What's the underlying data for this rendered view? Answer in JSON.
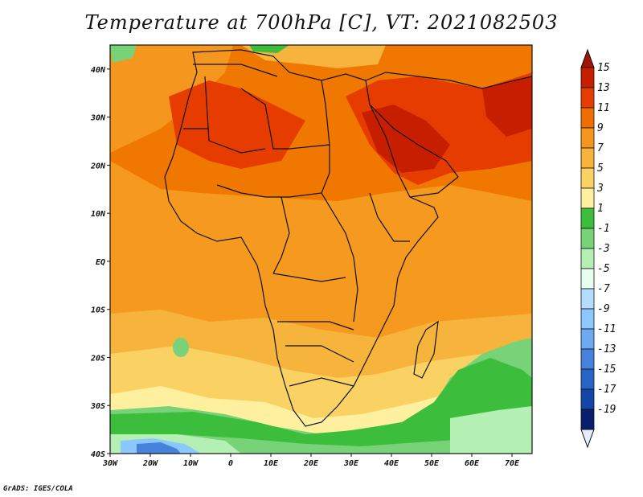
{
  "title": "Temperature at 700hPa [C], VT: 2021082503",
  "credit": "GrADS: IGES/COLA",
  "map": {
    "lon_ticks": [
      "30W",
      "20W",
      "10W",
      "0",
      "10E",
      "20E",
      "30E",
      "40E",
      "50E",
      "60E",
      "70E"
    ],
    "lat_ticks": [
      "40N",
      "30N",
      "20N",
      "10N",
      "EQ",
      "10S",
      "20S",
      "30S",
      "40S"
    ],
    "lon_range": [
      -30,
      75
    ],
    "lat_range": [
      -40,
      45
    ]
  },
  "colorbar": {
    "levels": [
      "15",
      "13",
      "11",
      "9",
      "7",
      "5",
      "3",
      "1",
      "-1",
      "-3",
      "-5",
      "-7",
      "-9",
      "-11",
      "-13",
      "-15",
      "-17",
      "-19"
    ],
    "colors": [
      "#c81e00",
      "#e63c00",
      "#f06e00",
      "#f5961e",
      "#f7b43c",
      "#fad264",
      "#fff0a0",
      "#3cbe3c",
      "#78d278",
      "#b4f0b4",
      "#e6fff0",
      "#b4dcff",
      "#8cc8ff",
      "#6eaaf0",
      "#4682dc",
      "#2864c8",
      "#1446aa",
      "#0a1e6e"
    ],
    "top_color": "#a01400",
    "bottom_color": "#e6ecff"
  },
  "colors": {
    "land_outline": "#111111",
    "hot_core": "#c82800",
    "warm": "#f07800",
    "mid": "#f59a1e",
    "pale": "#fad264",
    "light": "#fff0a0",
    "green": "#3cbe3c",
    "cold": "#4682dc"
  }
}
